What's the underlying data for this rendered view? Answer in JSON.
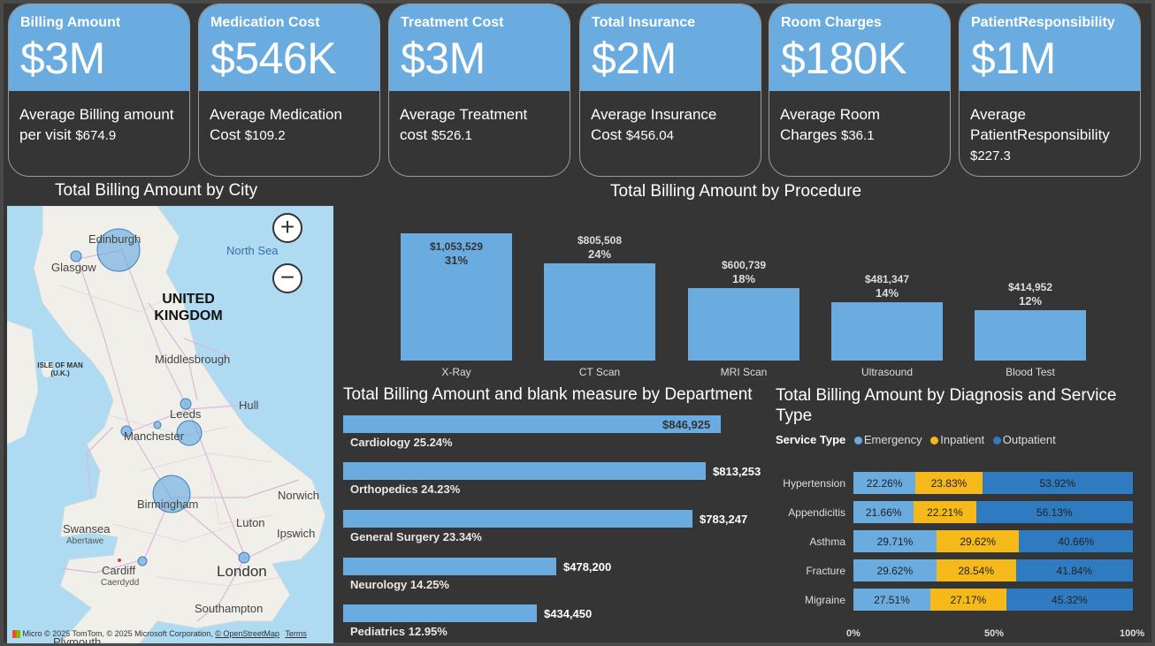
{
  "kpis": [
    {
      "title": "Billing Amount",
      "value": "$3M",
      "sub": "Average Billing amount per visit",
      "avg": "$674.9"
    },
    {
      "title": "Medication Cost",
      "value": "$546K",
      "sub": "Average Medication Cost",
      "avg": "$109.2"
    },
    {
      "title": "Treatment Cost",
      "value": "$3M",
      "sub": "Average Treatment cost",
      "avg": "$526.1"
    },
    {
      "title": "Total Insurance",
      "value": "$2M",
      "sub": "Average Insurance Cost",
      "avg": "$456.04"
    },
    {
      "title": "Room Charges",
      "value": "$180K",
      "sub": "Average Room Charges",
      "avg": "$36.1"
    },
    {
      "title": "PatientResponsibility",
      "value": "$1M",
      "sub": "Average PatientResponsibility",
      "avg": "$227.3"
    }
  ],
  "map": {
    "title": "Total Billing Amount by City",
    "labels": {
      "north_sea": "North Sea",
      "uk": "UNITED KINGDOM",
      "isle_of_man": "ISLE OF MAN (U.K.)",
      "edinburgh": "Edinburgh",
      "glasgow": "Glasgow",
      "middlesbrough": "Middlesbrough",
      "leeds": "Leeds",
      "hull": "Hull",
      "manchester": "Manchester",
      "birmingham": "Birmingham",
      "norwich": "Norwich",
      "swansea": "Swansea",
      "abertawe": "Abertawe",
      "luton": "Luton",
      "ipswich": "Ipswich",
      "cardiff": "Cardiff",
      "caerdydd": "Caerdydd",
      "london": "London",
      "southampton": "Southampton",
      "plymouth": "Plymouth"
    },
    "zoom_in": "+",
    "zoom_out": "−",
    "copyright": "© 2025 TomTom, © 2025 Microsoft Corporation,",
    "osm": "© OpenStreetMap",
    "terms": "Terms",
    "ms_logo_text": "Micro"
  },
  "chart_data": [
    {
      "type": "bar",
      "title": "Total Billing Amount by Procedure",
      "categories": [
        "X-Ray",
        "CT Scan",
        "MRI Scan",
        "Ultrasound",
        "Blood Test"
      ],
      "values": [
        1053529,
        805508,
        600739,
        481347,
        414952
      ],
      "value_labels": [
        "$1,053,529",
        "$805,508",
        "$600,739",
        "$481,347",
        "$414,952"
      ],
      "percent_labels": [
        "31%",
        "24%",
        "18%",
        "14%",
        "12%"
      ]
    },
    {
      "type": "bar",
      "orientation": "horizontal",
      "title": "Total Billing Amount and blank measure by Department",
      "categories": [
        "Cardiology 25.24%",
        "Orthopedics 24.23%",
        "General Surgery 23.34%",
        "Neurology 14.25%",
        "Pediatrics 12.95%"
      ],
      "values": [
        846925,
        813253,
        783247,
        478200,
        434450
      ],
      "value_labels": [
        "$846,925",
        "$813,253",
        "$783,247",
        "$478,200",
        "$434,450"
      ]
    },
    {
      "type": "bar",
      "orientation": "horizontal",
      "stacked": "100%",
      "title": "Total Billing Amount by Diagnosis and Service Type",
      "legend_title": "Service Type",
      "categories": [
        "Hypertension",
        "Appendicitis",
        "Asthma",
        "Fracture",
        "Migraine"
      ],
      "series": [
        {
          "name": "Emergency",
          "color": "#6aace0",
          "values": [
            22.26,
            21.66,
            29.71,
            29.62,
            27.51
          ],
          "labels": [
            "22.26%",
            "21.66%",
            "29.71%",
            "29.62%",
            "27.51%"
          ]
        },
        {
          "name": "Inpatient",
          "color": "#f5b91a",
          "values": [
            23.83,
            22.21,
            29.62,
            28.54,
            27.17
          ],
          "labels": [
            "23.83%",
            "22.21%",
            "29.62%",
            "28.54%",
            "27.17%"
          ]
        },
        {
          "name": "Outpatient",
          "color": "#2f7bc2",
          "values": [
            53.92,
            56.13,
            40.66,
            41.84,
            45.32
          ],
          "labels": [
            "53.92%",
            "56.13%",
            "40.66%",
            "41.84%",
            "45.32%"
          ]
        }
      ],
      "x_ticks": [
        "0%",
        "50%",
        "100%"
      ]
    }
  ]
}
